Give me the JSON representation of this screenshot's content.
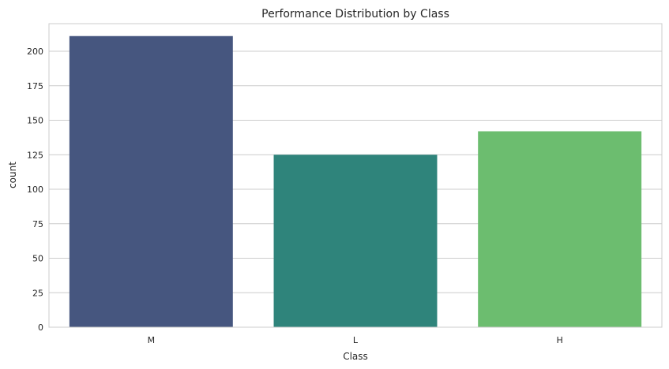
{
  "chart_data": {
    "type": "bar",
    "title": "Performance Distribution by Class",
    "xlabel": "Class",
    "ylabel": "count",
    "categories": [
      "M",
      "L",
      "H"
    ],
    "values": [
      211,
      125,
      142
    ],
    "colors": [
      "#46567f",
      "#2f847b",
      "#6cbd6f"
    ],
    "ylim": [
      0,
      220
    ],
    "yticks": [
      0,
      25,
      50,
      75,
      100,
      125,
      150,
      175,
      200
    ],
    "grid": "horizontal",
    "legend": "none"
  }
}
